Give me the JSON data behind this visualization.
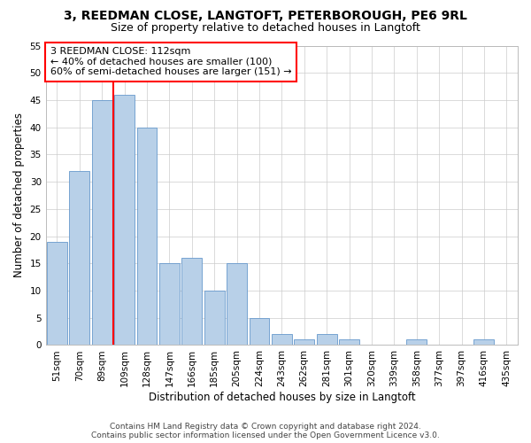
{
  "title": "3, REEDMAN CLOSE, LANGTOFT, PETERBOROUGH, PE6 9RL",
  "subtitle": "Size of property relative to detached houses in Langtoft",
  "xlabel": "Distribution of detached houses by size in Langtoft",
  "ylabel": "Number of detached properties",
  "categories": [
    "51sqm",
    "70sqm",
    "89sqm",
    "109sqm",
    "128sqm",
    "147sqm",
    "166sqm",
    "185sqm",
    "205sqm",
    "224sqm",
    "243sqm",
    "262sqm",
    "281sqm",
    "301sqm",
    "320sqm",
    "339sqm",
    "358sqm",
    "377sqm",
    "397sqm",
    "416sqm",
    "435sqm"
  ],
  "values": [
    19,
    32,
    45,
    46,
    40,
    15,
    16,
    10,
    15,
    5,
    2,
    1,
    2,
    1,
    0,
    0,
    1,
    0,
    0,
    1,
    0
  ],
  "bar_color": "#b8d0e8",
  "bar_edge_color": "#6699cc",
  "vline_color": "red",
  "vline_x": 3,
  "annotation_text": "3 REEDMAN CLOSE: 112sqm\n← 40% of detached houses are smaller (100)\n60% of semi-detached houses are larger (151) →",
  "annotation_box_color": "white",
  "annotation_box_edge_color": "red",
  "ylim": [
    0,
    55
  ],
  "yticks": [
    0,
    5,
    10,
    15,
    20,
    25,
    30,
    35,
    40,
    45,
    50,
    55
  ],
  "footer": "Contains HM Land Registry data © Crown copyright and database right 2024.\nContains public sector information licensed under the Open Government Licence v3.0.",
  "title_fontsize": 10,
  "subtitle_fontsize": 9,
  "axis_label_fontsize": 8.5,
  "tick_fontsize": 7.5,
  "annotation_fontsize": 8,
  "footer_fontsize": 6.5
}
